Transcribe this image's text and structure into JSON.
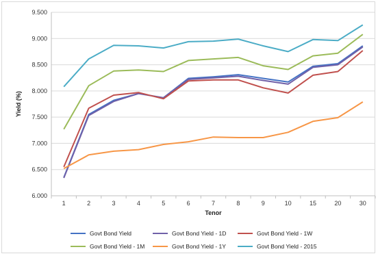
{
  "chart_data": {
    "type": "line",
    "title": "",
    "xlabel": "Tenor",
    "ylabel": "Yield (%)",
    "categories": [
      "1",
      "2",
      "3",
      "4",
      "5",
      "6",
      "7",
      "8",
      "9",
      "10",
      "15",
      "20",
      "30"
    ],
    "ylim": [
      6.0,
      9.5
    ],
    "ytick_values": [
      6.0,
      6.5,
      7.0,
      7.5,
      8.0,
      8.5,
      9.0,
      9.5
    ],
    "ytick_labels": [
      "6.000",
      "6.500",
      "7.000",
      "7.500",
      "8.000",
      "8.500",
      "9.000",
      "9.500"
    ],
    "grid": true,
    "legend_position": "bottom",
    "series": [
      {
        "name": "Govt Bond Yield",
        "color": "#4472c4",
        "values": [
          6.35,
          7.55,
          7.82,
          7.95,
          7.87,
          8.24,
          8.27,
          8.31,
          8.24,
          8.17,
          8.47,
          8.52,
          8.86
        ]
      },
      {
        "name": "Govt Bond Yield - 1D",
        "color": "#7060a8",
        "values": [
          6.34,
          7.53,
          7.8,
          7.95,
          7.87,
          8.22,
          8.25,
          8.28,
          8.2,
          8.13,
          8.45,
          8.5,
          8.84
        ]
      },
      {
        "name": "Govt Bond Yield - 1W",
        "color": "#c0504d",
        "values": [
          6.55,
          7.67,
          7.92,
          7.97,
          7.85,
          8.19,
          8.21,
          8.21,
          8.06,
          7.96,
          8.3,
          8.37,
          8.77
        ]
      },
      {
        "name": "Govt Bond Yield - 1M",
        "color": "#9bbb59",
        "values": [
          7.27,
          8.1,
          8.38,
          8.4,
          8.37,
          8.58,
          8.61,
          8.64,
          8.48,
          8.41,
          8.67,
          8.72,
          9.08
        ]
      },
      {
        "name": "Govt Bond Yield - 1Y",
        "color": "#f79646",
        "values": [
          6.52,
          6.78,
          6.85,
          6.88,
          6.98,
          7.03,
          7.12,
          7.11,
          7.11,
          7.21,
          7.42,
          7.49,
          7.79
        ]
      },
      {
        "name": "Govt Bond Yield - 2015",
        "color": "#4bacc6",
        "values": [
          8.08,
          8.61,
          8.87,
          8.86,
          8.82,
          8.94,
          8.95,
          8.99,
          8.86,
          8.75,
          8.98,
          8.96,
          9.26
        ]
      }
    ]
  }
}
